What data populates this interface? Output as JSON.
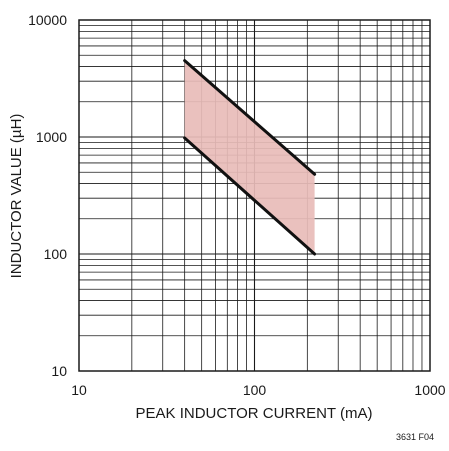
{
  "chart_data": {
    "type": "area",
    "xlabel": "PEAK INDUCTOR CURRENT (mA)",
    "ylabel": "INDUCTOR VALUE (µH)",
    "xscale": "log",
    "yscale": "log",
    "xlim": [
      10,
      1000
    ],
    "ylim": [
      10,
      10000
    ],
    "x_tick_labels": [
      "10",
      "100",
      "1000"
    ],
    "y_tick_labels": [
      "10",
      "100",
      "1000",
      "10000"
    ],
    "grid": true,
    "series": [
      {
        "x": [
          40,
          220
        ],
        "values": [
          4500,
          480
        ]
      },
      {
        "x": [
          40,
          220
        ],
        "values": [
          980,
          100
        ]
      }
    ],
    "shaded_region": {
      "x": [
        40,
        220
      ],
      "upper": [
        4500,
        480
      ],
      "lower": [
        980,
        100
      ]
    },
    "colors": {
      "fill": "#e8bcb8",
      "line": "#111111",
      "grid": "#1a1a1a"
    }
  },
  "figure_id": "3631 F04"
}
